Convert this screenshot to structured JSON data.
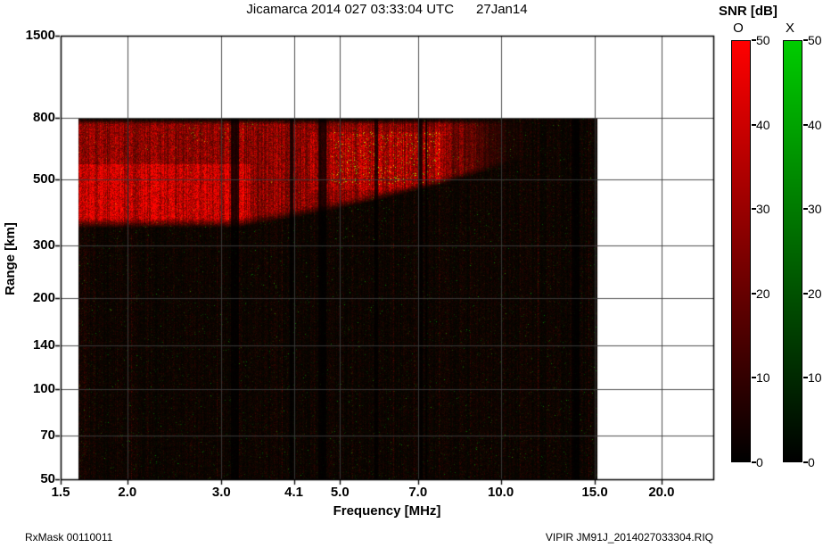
{
  "chart_data": {
    "type": "heatmap",
    "subtype": "ionogram",
    "title": "Jicamarca 2014 027 03:33:04 UTC      27Jan14",
    "xlabel": "Frequency [MHz]",
    "ylabel": "Range [km]",
    "x_scale": "log",
    "y_scale": "log",
    "x_range_mhz": [
      1.5,
      25
    ],
    "y_range_km": [
      50,
      1500
    ],
    "grid": true,
    "x_ticks": [
      {
        "label": "1.5",
        "value": 1.5
      },
      {
        "label": "2.0",
        "value": 2.0
      },
      {
        "label": "3.0",
        "value": 3.0
      },
      {
        "label": "4.1",
        "value": 4.1
      },
      {
        "label": "5.0",
        "value": 5.0
      },
      {
        "label": "7.0",
        "value": 7.0
      },
      {
        "label": "10.0",
        "value": 10.0
      },
      {
        "label": "15.0",
        "value": 15.0
      },
      {
        "label": "20.0",
        "value": 20.0
      }
    ],
    "y_ticks": [
      {
        "label": "1500",
        "value": 1500
      },
      {
        "label": "800",
        "value": 800
      },
      {
        "label": "500",
        "value": 500
      },
      {
        "label": "300",
        "value": 300
      },
      {
        "label": "200",
        "value": 200
      },
      {
        "label": "140",
        "value": 140
      },
      {
        "label": "100",
        "value": 100
      },
      {
        "label": "70",
        "value": 70
      },
      {
        "label": "50",
        "value": 50
      }
    ],
    "data_extent": {
      "freq_mhz": [
        1.62,
        15.1
      ],
      "range_km": [
        50,
        793
      ]
    },
    "colorbar": {
      "title": "SNR [dB]",
      "min": 0,
      "max": 50,
      "ticks": [
        50,
        40,
        30,
        20,
        10,
        0
      ],
      "channels": [
        {
          "label": "O",
          "color": "#ff0000"
        },
        {
          "label": "X",
          "color": "#00cc00"
        }
      ]
    },
    "features": {
      "background_color": "#000000",
      "noise_floor_db": 5,
      "echo_layer": {
        "channel": "O",
        "freq_mhz": [
          1.62,
          9.8
        ],
        "range_km": [
          345,
          790
        ],
        "peak_snr_db": 35
      },
      "x_mode_scatter": {
        "channel": "X",
        "freq_mhz": [
          4.8,
          7.7
        ],
        "range_km": [
          480,
          720
        ],
        "snr_db": [
          15,
          45
        ]
      },
      "secondary_scatter": {
        "channel": "X",
        "freq_mhz": [
          2.6,
          3.5
        ],
        "range_km": [
          660,
          780
        ],
        "snr_db": [
          10,
          30
        ]
      }
    },
    "footer_left": "RxMask 00110011",
    "footer_right": "VIPIR  JM91J_2014027033304.RIQ"
  }
}
